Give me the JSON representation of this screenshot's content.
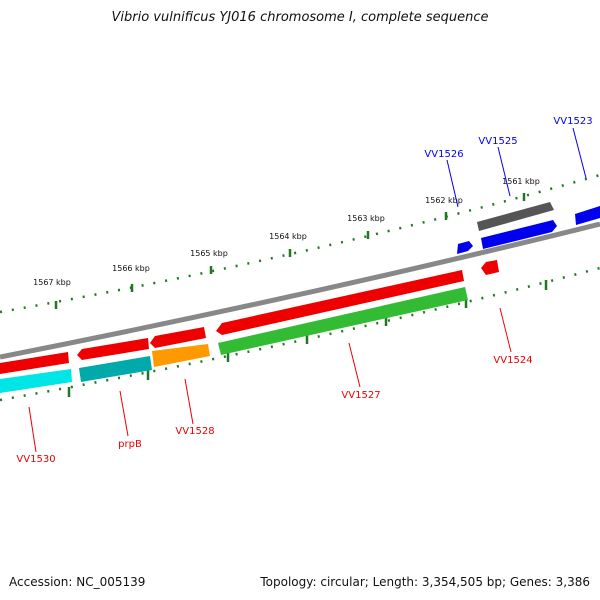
{
  "header": {
    "title": "Vibrio vulnificus YJ016 chromosome I, complete sequence"
  },
  "footer": {
    "accession": "Accession: NC_005139",
    "stats": "Topology: circular; Length: 3,354,505 bp; Genes: 3,386"
  },
  "scale_labels": [
    "1567 kbp",
    "1566 kbp",
    "1565 kbp",
    "1564 kbp",
    "1563 kbp",
    "1562 kbp",
    "1561 kbp"
  ],
  "genes_forward": [
    {
      "id": "gene-vv1526",
      "label": "VV1526",
      "color": "#0000ee"
    },
    {
      "id": "gene-vv1525",
      "label": "VV1525",
      "color": "#0000ee"
    },
    {
      "id": "gene-vv1523",
      "label": "VV1523",
      "color": "#0000ee"
    },
    {
      "id": "gene-gray",
      "label": "",
      "color": "#666666"
    }
  ],
  "genes_reverse": [
    {
      "id": "gene-vv1530",
      "label": "VV1530",
      "color": "#ee0000"
    },
    {
      "id": "gene-prpb",
      "label": "prpB",
      "color": "#ee0000"
    },
    {
      "id": "gene-vv1528",
      "label": "VV1528",
      "color": "#ee0000"
    },
    {
      "id": "gene-vv1527",
      "label": "VV1527",
      "color": "#ee0000"
    },
    {
      "id": "gene-vv1524",
      "label": "VV1524",
      "color": "#ee0000"
    }
  ],
  "feature_colors": {
    "cds_reverse": "#ee0000",
    "cds_forward": "#0000ee",
    "other": "#666666",
    "cyan": "#00dddd",
    "teal": "#00aaaa",
    "orange": "#ff9900",
    "green": "#33bb33",
    "backbone": "#888888",
    "ticks": "#227722"
  }
}
